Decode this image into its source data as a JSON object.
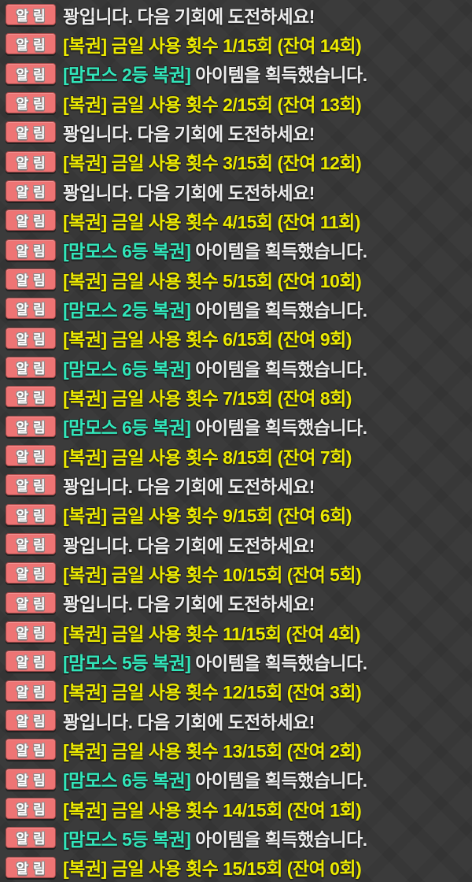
{
  "app": {
    "name": "game-notification-chat-log"
  },
  "badge_label": "알림",
  "colors": {
    "bg": "#3b3b3b",
    "badge-bg": "#ee7474",
    "badge-text": "#ffffff",
    "text-white": "#ededed",
    "text-yellow": "#ebe900",
    "text-teal": "#31e6ba"
  },
  "lottery": {
    "name": "복권",
    "daily_limit": 15,
    "final_used": 15,
    "final_remaining": 0
  },
  "rows": [
    {
      "segments": [
        {
          "style": "white",
          "text": "꽝입니다. 다음 기회에 도전하세요!"
        }
      ]
    },
    {
      "segments": [
        {
          "style": "yellow",
          "text": "[복권] 금일 사용 횟수 1/15회 (잔여 14회)"
        }
      ]
    },
    {
      "segments": [
        {
          "style": "teal",
          "text": "[맘모스 2등 복권]"
        },
        {
          "style": "white",
          "text": " 아이템을 획득했습니다."
        }
      ]
    },
    {
      "segments": [
        {
          "style": "yellow",
          "text": "[복권] 금일 사용 횟수 2/15회 (잔여 13회)"
        }
      ]
    },
    {
      "segments": [
        {
          "style": "white",
          "text": "꽝입니다. 다음 기회에 도전하세요!"
        }
      ]
    },
    {
      "segments": [
        {
          "style": "yellow",
          "text": "[복권] 금일 사용 횟수 3/15회 (잔여 12회)"
        }
      ]
    },
    {
      "segments": [
        {
          "style": "white",
          "text": "꽝입니다. 다음 기회에 도전하세요!"
        }
      ]
    },
    {
      "segments": [
        {
          "style": "yellow",
          "text": "[복권] 금일 사용 횟수 4/15회 (잔여 11회)"
        }
      ]
    },
    {
      "segments": [
        {
          "style": "teal",
          "text": "[맘모스 6등 복권]"
        },
        {
          "style": "white",
          "text": " 아이템을 획득했습니다."
        }
      ]
    },
    {
      "segments": [
        {
          "style": "yellow",
          "text": "[복권] 금일 사용 횟수 5/15회 (잔여 10회)"
        }
      ]
    },
    {
      "segments": [
        {
          "style": "teal",
          "text": "[맘모스 2등 복권]"
        },
        {
          "style": "white",
          "text": " 아이템을 획득했습니다."
        }
      ]
    },
    {
      "segments": [
        {
          "style": "yellow",
          "text": "[복권] 금일 사용 횟수 6/15회 (잔여 9회)"
        }
      ]
    },
    {
      "segments": [
        {
          "style": "teal",
          "text": "[맘모스 6등 복권]"
        },
        {
          "style": "white",
          "text": " 아이템을 획득했습니다."
        }
      ]
    },
    {
      "segments": [
        {
          "style": "yellow",
          "text": "[복권] 금일 사용 횟수 7/15회 (잔여 8회)"
        }
      ]
    },
    {
      "segments": [
        {
          "style": "teal",
          "text": "[맘모스 6등 복권]"
        },
        {
          "style": "white",
          "text": " 아이템을 획득했습니다."
        }
      ]
    },
    {
      "segments": [
        {
          "style": "yellow",
          "text": "[복권] 금일 사용 횟수 8/15회 (잔여 7회)"
        }
      ]
    },
    {
      "segments": [
        {
          "style": "white",
          "text": "꽝입니다. 다음 기회에 도전하세요!"
        }
      ]
    },
    {
      "segments": [
        {
          "style": "yellow",
          "text": "[복권] 금일 사용 횟수 9/15회 (잔여 6회)"
        }
      ]
    },
    {
      "segments": [
        {
          "style": "white",
          "text": "꽝입니다. 다음 기회에 도전하세요!"
        }
      ]
    },
    {
      "segments": [
        {
          "style": "yellow",
          "text": "[복권] 금일 사용 횟수 10/15회 (잔여 5회)"
        }
      ]
    },
    {
      "segments": [
        {
          "style": "white",
          "text": "꽝입니다. 다음 기회에 도전하세요!"
        }
      ]
    },
    {
      "segments": [
        {
          "style": "yellow",
          "text": "[복권] 금일 사용 횟수 11/15회 (잔여 4회)"
        }
      ]
    },
    {
      "segments": [
        {
          "style": "teal",
          "text": "[맘모스 5등 복권]"
        },
        {
          "style": "white",
          "text": " 아이템을 획득했습니다."
        }
      ]
    },
    {
      "segments": [
        {
          "style": "yellow",
          "text": "[복권] 금일 사용 횟수 12/15회 (잔여 3회)"
        }
      ]
    },
    {
      "segments": [
        {
          "style": "white",
          "text": "꽝입니다. 다음 기회에 도전하세요!"
        }
      ]
    },
    {
      "segments": [
        {
          "style": "yellow",
          "text": "[복권] 금일 사용 횟수 13/15회 (잔여 2회)"
        }
      ]
    },
    {
      "segments": [
        {
          "style": "teal",
          "text": "[맘모스 6등 복권]"
        },
        {
          "style": "white",
          "text": " 아이템을 획득했습니다."
        }
      ]
    },
    {
      "segments": [
        {
          "style": "yellow",
          "text": "[복권] 금일 사용 횟수 14/15회 (잔여 1회)"
        }
      ]
    },
    {
      "segments": [
        {
          "style": "teal",
          "text": "[맘모스 5등 복권]"
        },
        {
          "style": "white",
          "text": " 아이템을 획득했습니다."
        }
      ]
    },
    {
      "segments": [
        {
          "style": "yellow",
          "text": "[복권] 금일 사용 횟수 15/15회 (잔여 0회)"
        }
      ]
    }
  ]
}
